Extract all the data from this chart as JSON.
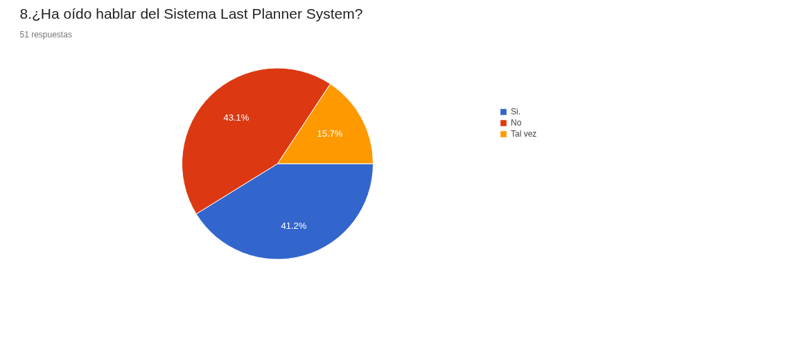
{
  "chart_data": {
    "type": "pie",
    "title": "8.¿Ha oído hablar del Sistema Last Planner System?",
    "subtitle": "51 respuestas",
    "categories": [
      "Si.",
      "No",
      "Tal vez"
    ],
    "values": [
      41.2,
      43.1,
      15.7
    ],
    "colors": [
      "#3366cc",
      "#dc3912",
      "#ff9900"
    ],
    "value_labels": [
      "41.2%",
      "43.1%",
      "15.7%"
    ],
    "legend": "top right"
  }
}
